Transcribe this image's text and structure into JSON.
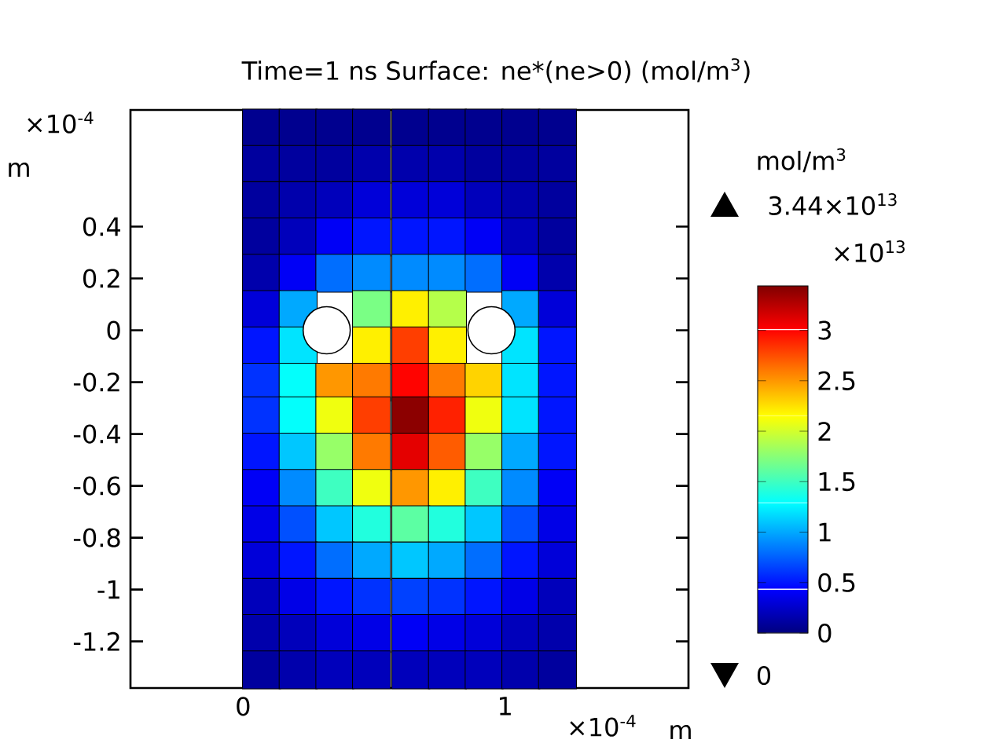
{
  "chart_data": {
    "type": "scatter",
    "title": "Time=1 ns   Surface: ne*(ne>0) (mol/m$^{3}$)",
    "xlabel": "m",
    "ylabel": "m",
    "clabel": "mol/m$^{3}$",
    "annotations": [
      "×10$^{-4}$",
      "×10$^{-4}$",
      "×10$^{13}$",
      "3.44×10$^{13}$",
      "0"
    ],
    "marker": "square",
    "x": [
      0.07,
      0.21,
      0.35,
      0.49,
      0.64,
      0.78,
      0.92,
      1.06,
      1.2,
      0.07,
      0.21,
      0.35,
      0.49,
      0.64,
      0.78,
      0.92,
      1.06,
      1.2,
      0.07,
      0.21,
      0.35,
      0.49,
      0.64,
      0.78,
      0.92,
      1.06,
      1.2,
      0.07,
      0.21,
      0.35,
      0.49,
      0.64,
      0.78,
      0.92,
      1.06,
      1.2,
      0.07,
      0.21,
      0.35,
      0.49,
      0.64,
      0.78,
      0.92,
      1.06,
      1.2,
      0.07,
      0.21,
      0.35,
      0.49,
      0.64,
      0.78,
      0.92,
      1.06,
      1.2,
      0.07,
      0.21,
      0.35,
      0.49,
      0.64,
      0.78,
      0.92,
      1.06,
      1.2,
      0.07,
      0.21,
      0.35,
      0.49,
      0.64,
      0.78,
      0.92,
      1.06,
      1.2,
      0.07,
      0.21,
      0.35,
      0.49,
      0.64,
      0.78,
      0.92,
      1.06,
      1.2,
      0.07,
      0.21,
      0.35,
      0.49,
      0.64,
      0.78,
      0.92,
      1.06,
      1.2,
      0.07,
      0.21,
      0.35,
      0.49,
      0.64,
      0.78,
      0.92,
      1.06,
      1.2,
      0.07,
      0.21,
      0.35,
      0.49,
      0.64,
      0.78,
      0.92,
      1.06,
      1.2,
      0.07,
      0.21,
      0.35,
      0.49,
      0.64,
      0.78,
      0.92,
      1.06,
      1.2,
      0.07,
      0.21,
      0.35,
      0.49,
      0.64,
      0.78,
      0.92,
      1.06,
      1.2,
      0.07,
      0.21,
      0.35,
      0.49,
      0.64,
      0.78,
      0.92,
      1.06,
      1.2,
      0.07,
      0.21,
      0.35,
      0.49,
      0.64,
      0.78,
      0.92,
      1.06,
      1.2
    ],
    "values": [
      0.78,
      0.78,
      0.78,
      0.78,
      0.78,
      0.78,
      0.78,
      0.78,
      0.78,
      0.64,
      0.64,
      0.64,
      0.64,
      0.64,
      0.64,
      0.64,
      0.64,
      0.64,
      0.5,
      0.5,
      0.5,
      0.5,
      0.5,
      0.5,
      0.5,
      0.5,
      0.5,
      0.36,
      0.36,
      0.36,
      0.36,
      0.36,
      0.36,
      0.36,
      0.36,
      0.36,
      0.22,
      0.22,
      0.22,
      0.22,
      0.22,
      0.22,
      0.22,
      0.22,
      0.22,
      0.08,
      0.08,
      null,
      0.08,
      0.08,
      0.08,
      null,
      0.08,
      0.08,
      -0.06,
      -0.06,
      null,
      -0.06,
      -0.06,
      -0.06,
      null,
      -0.06,
      -0.06,
      -0.2,
      -0.2,
      -0.2,
      -0.2,
      -0.2,
      -0.2,
      -0.2,
      -0.2,
      -0.2,
      -0.33,
      -0.33,
      -0.33,
      -0.33,
      -0.33,
      -0.33,
      -0.33,
      -0.33,
      -0.33,
      -0.47,
      -0.47,
      -0.47,
      -0.47,
      -0.47,
      -0.47,
      -0.47,
      -0.47,
      -0.47,
      -0.61,
      -0.61,
      -0.61,
      -0.61,
      -0.61,
      -0.61,
      -0.61,
      -0.61,
      -0.61,
      -0.75,
      -0.75,
      -0.75,
      -0.75,
      -0.75,
      -0.75,
      -0.75,
      -0.75,
      -0.75,
      -0.89,
      -0.89,
      -0.89,
      -0.89,
      -0.89,
      -0.89,
      -0.89,
      -0.89,
      -0.89,
      -1.03,
      -1.03,
      -1.03,
      -1.03,
      -1.03,
      -1.03,
      -1.03,
      -1.03,
      -1.03,
      -1.17,
      -1.17,
      -1.17,
      -1.17,
      -1.17,
      -1.17,
      -1.17,
      -1.17,
      -1.17,
      -1.31,
      -1.31,
      -1.31,
      -1.31,
      -1.31,
      -1.31,
      -1.31,
      -1.31,
      -1.31
    ],
    "cvalues": [
      0.05,
      0.05,
      0.05,
      0.05,
      0.05,
      0.05,
      0.05,
      0.05,
      0.05,
      0.1,
      0.1,
      0.1,
      0.15,
      0.15,
      0.15,
      0.1,
      0.1,
      0.1,
      0.1,
      0.15,
      0.2,
      0.3,
      0.3,
      0.3,
      0.2,
      0.15,
      0.1,
      0.1,
      0.2,
      0.4,
      0.5,
      0.5,
      0.5,
      0.4,
      0.2,
      0.1,
      0.15,
      0.4,
      0.8,
      0.9,
      0.9,
      0.9,
      0.8,
      0.4,
      0.15,
      0.3,
      1.0,
      null,
      1.7,
      2.2,
      1.9,
      null,
      1.0,
      0.3,
      0.5,
      1.2,
      null,
      2.2,
      2.8,
      2.2,
      null,
      1.2,
      0.5,
      0.6,
      1.3,
      2.5,
      2.6,
      3.0,
      2.6,
      2.3,
      1.2,
      0.5,
      0.6,
      1.3,
      2.1,
      2.8,
      3.4,
      2.9,
      2.1,
      1.2,
      0.5,
      0.5,
      1.1,
      1.8,
      2.6,
      3.1,
      2.7,
      1.8,
      1.0,
      0.5,
      0.4,
      0.9,
      1.5,
      2.1,
      2.5,
      2.2,
      1.5,
      0.9,
      0.4,
      0.35,
      0.7,
      1.1,
      1.4,
      1.6,
      1.4,
      1.1,
      0.7,
      0.35,
      0.3,
      0.5,
      0.8,
      1.0,
      1.1,
      1.0,
      0.8,
      0.5,
      0.3,
      0.2,
      0.35,
      0.5,
      0.6,
      0.65,
      0.6,
      0.5,
      0.35,
      0.2,
      0.15,
      0.2,
      0.3,
      0.35,
      0.4,
      0.35,
      0.3,
      0.2,
      0.15,
      0.1,
      0.15,
      0.2,
      0.2,
      0.2,
      0.2,
      0.2,
      0.15,
      0.1
    ],
    "clim": [
      0,
      3.44
    ],
    "cticks": [
      0,
      0.5,
      1,
      1.5,
      2,
      2.5,
      3
    ],
    "xlim": [
      -0.43,
      1.7
    ],
    "ylim": [
      -1.38,
      0.85
    ],
    "xticks": [
      0,
      1
    ],
    "yticks": [
      -1.2,
      -1,
      -0.8,
      -0.6,
      -0.4,
      -0.2,
      0,
      0.2,
      0.4
    ]
  }
}
